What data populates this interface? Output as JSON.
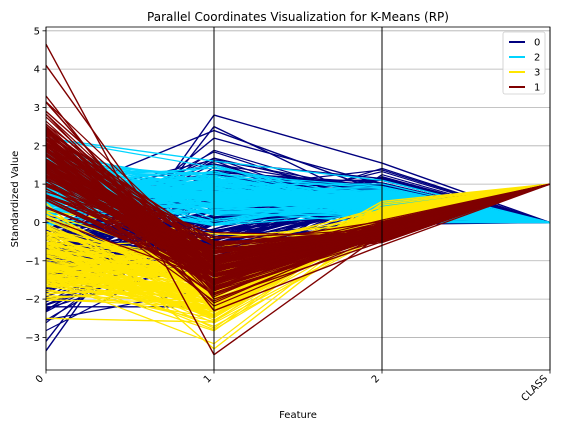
{
  "chart_data": {
    "type": "parallel-coordinates",
    "title": "Parallel Coordinates Visualization for K-Means (RP)",
    "xlabel": "Feature",
    "ylabel": "Standardized Value",
    "features": [
      "0",
      "1",
      "2",
      "CLASS"
    ],
    "ylim": [
      -3.85,
      5.1
    ],
    "yticks": [
      -3,
      -2,
      -1,
      0,
      1,
      2,
      3,
      4,
      5
    ],
    "grid": true,
    "legend_position": "top-right",
    "legend": [
      {
        "label": "0",
        "color": "#00007f"
      },
      {
        "label": "2",
        "color": "#00d4ff"
      },
      {
        "label": "3",
        "color": "#ffe600"
      },
      {
        "label": "1",
        "color": "#7f0000"
      }
    ],
    "clusters": [
      {
        "name": "0",
        "color": "#00007f",
        "class_value": 0,
        "ranges": [
          [
            -3.35,
            1.4
          ],
          [
            -2.2,
            2.8
          ],
          [
            -0.25,
            1.55
          ]
        ],
        "extreme_lines": [
          [
            -3.35,
            2.8,
            1.55,
            0
          ],
          [
            -3.1,
            2.5,
            0.4,
            0
          ],
          [
            0.6,
            2.4,
            0.8,
            0
          ],
          [
            -2.2,
            -2.2,
            0.1,
            0
          ],
          [
            -1.4,
            2.2,
            1.0,
            0
          ]
        ]
      },
      {
        "name": "2",
        "color": "#00d4ff",
        "class_value": 0,
        "ranges": [
          [
            -0.4,
            2.3
          ],
          [
            -0.3,
            1.7
          ],
          [
            -0.1,
            1.15
          ]
        ],
        "extreme_lines": [
          [
            2.2,
            1.6,
            1.1,
            0
          ],
          [
            0.2,
            0.3,
            0.0,
            0
          ],
          [
            1.6,
            1.2,
            0.9,
            0
          ]
        ]
      },
      {
        "name": "3",
        "color": "#ffe600",
        "class_value": 1,
        "ranges": [
          [
            -2.5,
            0.7
          ],
          [
            -3.3,
            -0.1
          ],
          [
            -0.5,
            0.6
          ]
        ],
        "extreme_lines": [
          [
            0.5,
            -3.3,
            0.1,
            1
          ],
          [
            -2.5,
            -2.6,
            0.5,
            1
          ],
          [
            -1.8,
            -1.9,
            0.55,
            1
          ],
          [
            0.3,
            -0.3,
            -0.4,
            1
          ]
        ]
      },
      {
        "name": "1",
        "color": "#7f0000",
        "class_value": 1,
        "ranges": [
          [
            -0.4,
            3.5
          ],
          [
            -2.3,
            0.0
          ],
          [
            -0.6,
            0.1
          ]
        ],
        "extreme_lines": [
          [
            4.65,
            -3.45,
            -0.3,
            1
          ],
          [
            4.1,
            -2.0,
            -0.5,
            1
          ],
          [
            3.3,
            -2.3,
            -0.6,
            1
          ],
          [
            2.9,
            -1.0,
            0.0,
            1
          ]
        ]
      }
    ]
  }
}
